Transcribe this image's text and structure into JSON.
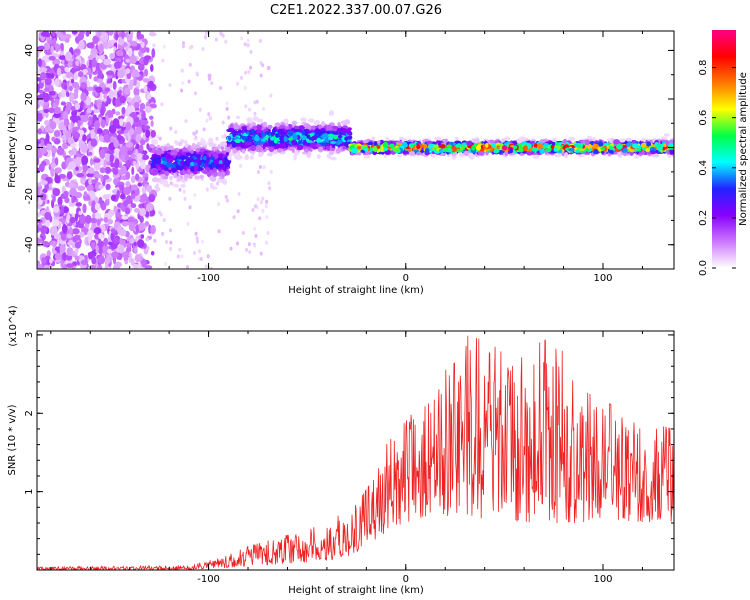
{
  "title": "C2E1.2022.337.00.07.G26",
  "chart_data": [
    {
      "type": "heatmap",
      "title": "",
      "xlabel": "Height of straight line (km)",
      "ylabel": "Frequency (Hz)",
      "xlim": [
        -187,
        136
      ],
      "ylim": [
        -50,
        48
      ],
      "x_ticks": [
        -100,
        0,
        100
      ],
      "y_ticks": [
        -40,
        -20,
        0,
        20,
        40
      ],
      "colorbar": {
        "label": "Normalized spectral amplitude",
        "range": [
          0,
          0.95
        ],
        "ticks": [
          0.0,
          0.2,
          0.4,
          0.6,
          0.8
        ],
        "colormap": [
          "#ffffff",
          "#cc77ff",
          "#8800ff",
          "#2222ff",
          "#00ffff",
          "#00ff44",
          "#ffff00",
          "#ff7700",
          "#ff0000",
          "#ff0088"
        ]
      },
      "regions": [
        {
          "x_range": [
            -187,
            -128
          ],
          "freq_range": [
            -50,
            48
          ],
          "amplitude": 0.1,
          "pattern": "scattered"
        },
        {
          "x_range": [
            -128,
            -90
          ],
          "freq_center": -6,
          "freq_spread": 6,
          "amplitude": 0.35
        },
        {
          "x_range": [
            -90,
            -28
          ],
          "freq_center": 4,
          "freq_spread": 5,
          "amplitude": 0.45
        },
        {
          "x_range": [
            -28,
            136
          ],
          "freq_center": 0,
          "freq_spread": 2,
          "amplitude": 0.85
        }
      ],
      "grid": false,
      "legend": "none"
    },
    {
      "type": "line",
      "title": "",
      "xlabel": "Height of straight line (km)",
      "ylabel": "SNR (10 * v/v)",
      "y_multiplier": "(x10^4)",
      "xlim": [
        -187,
        136
      ],
      "ylim": [
        0,
        3.05
      ],
      "x_ticks": [
        -100,
        0,
        100
      ],
      "y_ticks": [
        1,
        2,
        3
      ],
      "color": "#ee2222",
      "grid": false,
      "legend": "none",
      "envelope": {
        "x": [
          -187,
          -140,
          -110,
          -95,
          -80,
          -60,
          -40,
          -25,
          -15,
          -10,
          0,
          10,
          20,
          30,
          45,
          60,
          75,
          90,
          105,
          120,
          136
        ],
        "baseline": [
          0,
          0,
          0,
          0.02,
          0.05,
          0.08,
          0.12,
          0.2,
          0.35,
          0.5,
          0.6,
          0.6,
          0.7,
          0.6,
          0.6,
          0.6,
          0.6,
          0.6,
          0.6,
          0.6,
          0.6
        ],
        "peak": [
          0.04,
          0.05,
          0.06,
          0.15,
          0.3,
          0.45,
          0.6,
          0.85,
          1.2,
          1.6,
          1.9,
          2.2,
          2.6,
          3.0,
          2.9,
          2.8,
          3.0,
          2.3,
          2.1,
          1.9,
          1.8
        ]
      }
    }
  ]
}
